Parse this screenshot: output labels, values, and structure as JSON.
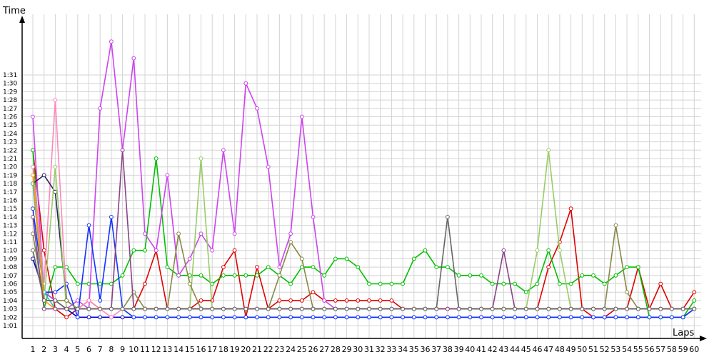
{
  "chart_data": {
    "type": "line",
    "title": "",
    "ylabel": "Time",
    "xlabel": "Laps",
    "x_ticks": [
      "1",
      "2",
      "3",
      "4",
      "5",
      "6",
      "7",
      "8",
      "9",
      "10",
      "11",
      "12",
      "13",
      "14",
      "15",
      "16",
      "17",
      "18",
      "19",
      "20",
      "21",
      "22",
      "23",
      "24",
      "25",
      "26",
      "27",
      "28",
      "29",
      "30",
      "31",
      "32",
      "33",
      "34",
      "35",
      "36",
      "37",
      "38",
      "39",
      "40",
      "41",
      "42",
      "43",
      "44",
      "45",
      "46",
      "47",
      "48",
      "49",
      "50",
      "51",
      "52",
      "53",
      "54",
      "55",
      "56",
      "57",
      "58",
      "59",
      "60"
    ],
    "y_ticks": [
      "1:01",
      "1:02",
      "1:03",
      "1:04",
      "1:05",
      "1:06",
      "1:07",
      "1:08",
      "1:09",
      "1:10",
      "1:11",
      "1:12",
      "1:13",
      "1:14",
      "1:15",
      "1:16",
      "1:17",
      "1:18",
      "1:19",
      "1:20",
      "1:21",
      "1:22",
      "1:23",
      "1:24",
      "1:25",
      "1:26",
      "1:27",
      "1:28",
      "1:29",
      "1:30",
      "1:31"
    ],
    "y_unit": "seconds",
    "ylim": [
      60,
      93
    ],
    "xlim": [
      1,
      60
    ],
    "grid": true,
    "legend": "none",
    "series": [
      {
        "color": "#e00000",
        "values": [
          82,
          70,
          63,
          62,
          63,
          64,
          63,
          63,
          63,
          63,
          66,
          70,
          63,
          63,
          63,
          64,
          64,
          68,
          70,
          62,
          68,
          63,
          64,
          64,
          64,
          65,
          64,
          64,
          64,
          64,
          64,
          64,
          64,
          63,
          63,
          63,
          63,
          63,
          63,
          63,
          63,
          63,
          63,
          63,
          63,
          63,
          68,
          71,
          75,
          63,
          62,
          62,
          63,
          63,
          68,
          63,
          66,
          63,
          63,
          65
        ]
      },
      {
        "color": "#0000cc",
        "values": [
          69,
          65,
          64,
          63,
          62,
          62,
          62,
          62,
          62,
          62,
          62,
          62,
          62,
          62,
          62,
          62,
          62,
          62,
          62,
          62,
          62,
          62,
          62,
          62,
          62,
          62,
          62,
          62,
          62,
          62,
          62,
          62,
          62,
          62,
          62,
          62,
          62,
          62,
          62,
          62,
          62,
          62,
          62,
          62,
          62,
          62,
          62,
          62,
          62,
          62,
          62,
          62,
          62,
          62,
          62,
          62,
          62,
          62,
          62,
          63
        ]
      },
      {
        "color": "#00c000",
        "values": [
          82,
          63,
          68,
          68,
          66,
          66,
          66,
          66,
          67,
          70,
          70,
          81,
          68,
          67,
          67,
          67,
          66,
          67,
          67,
          67,
          67,
          68,
          67,
          66,
          68,
          68,
          67,
          69,
          69,
          68,
          66,
          66,
          66,
          66,
          69,
          70,
          68,
          68,
          67,
          67,
          67,
          66,
          66,
          66,
          65,
          66,
          70,
          66,
          66,
          67,
          67,
          66,
          67,
          68,
          68,
          62,
          62,
          62,
          62,
          64
        ]
      },
      {
        "color": "#cc44ee",
        "values": [
          86,
          65,
          64,
          63,
          64,
          63,
          87,
          95,
          82,
          93,
          72,
          70,
          79,
          67,
          69,
          72,
          70,
          82,
          72,
          90,
          87,
          80,
          68,
          72,
          86,
          74,
          64,
          63,
          63,
          63,
          63,
          63,
          63,
          63,
          63,
          63,
          63,
          63,
          63,
          63,
          63,
          63,
          63,
          63,
          63,
          63,
          63,
          63,
          63,
          63,
          63,
          63,
          63,
          63,
          63,
          63,
          63,
          63,
          63,
          63
        ]
      },
      {
        "color": "#1133ff",
        "values": [
          75,
          65,
          65,
          66,
          62,
          73,
          64,
          74,
          63,
          62,
          62,
          62,
          62,
          62,
          62,
          62,
          62,
          62,
          62,
          62,
          62,
          62,
          62,
          62,
          62,
          62,
          62,
          62,
          62,
          62,
          62,
          62,
          62,
          62,
          62,
          62,
          62,
          62,
          62,
          62,
          62,
          62,
          62,
          62,
          62,
          62,
          62,
          62,
          62,
          62,
          62,
          62,
          62,
          62,
          62,
          62,
          62,
          62,
          62,
          63
        ]
      },
      {
        "color": "#ff88bb",
        "values": [
          80,
          66,
          88,
          64,
          63,
          64,
          63,
          62,
          63,
          63,
          63,
          63,
          63,
          63,
          63,
          63,
          63,
          63,
          63,
          63,
          63,
          63,
          63,
          63,
          63,
          63,
          63,
          63,
          63,
          63,
          63,
          63,
          63,
          63,
          63,
          63,
          63,
          63,
          63,
          63,
          63,
          63,
          63,
          63,
          63,
          63,
          63,
          63,
          63,
          63,
          63,
          63,
          63,
          63,
          63,
          63,
          63,
          63,
          63,
          63
        ]
      },
      {
        "color": "#222266",
        "values": [
          78,
          79,
          77,
          64,
          63,
          63,
          63,
          63,
          63,
          63,
          63,
          63,
          63,
          63,
          63,
          63,
          63,
          63,
          63,
          63,
          63,
          63,
          63,
          63,
          63,
          63,
          63,
          63,
          63,
          63,
          63,
          63,
          63,
          63,
          63,
          63,
          63,
          63,
          63,
          63,
          63,
          63,
          63,
          63,
          63,
          63,
          63,
          63,
          63,
          63,
          63,
          63,
          63,
          63,
          63,
          63,
          63,
          63,
          63,
          63
        ]
      },
      {
        "color": "#99cc66",
        "values": [
          78,
          64,
          80,
          63,
          63,
          63,
          63,
          63,
          63,
          63,
          63,
          63,
          63,
          63,
          63,
          81,
          63,
          63,
          63,
          63,
          63,
          63,
          63,
          63,
          63,
          63,
          63,
          63,
          63,
          63,
          63,
          63,
          63,
          63,
          63,
          63,
          63,
          63,
          63,
          63,
          63,
          63,
          63,
          63,
          63,
          70,
          82,
          70,
          63,
          63,
          63,
          63,
          63,
          63,
          63,
          63,
          63,
          63,
          63,
          63
        ]
      },
      {
        "color": "#888844",
        "values": [
          72,
          64,
          64,
          64,
          63,
          63,
          63,
          63,
          63,
          65,
          63,
          63,
          63,
          72,
          66,
          63,
          63,
          63,
          63,
          63,
          63,
          63,
          67,
          71,
          69,
          63,
          63,
          63,
          63,
          63,
          63,
          63,
          63,
          63,
          63,
          63,
          63,
          63,
          63,
          63,
          63,
          63,
          63,
          63,
          63,
          63,
          63,
          63,
          63,
          63,
          63,
          63,
          73,
          65,
          63,
          63,
          63,
          63,
          63,
          63
        ]
      },
      {
        "color": "#22bbcc",
        "values": [
          78,
          65,
          63,
          63,
          63,
          63,
          63,
          63,
          63,
          63,
          63,
          63,
          63,
          63,
          63,
          63,
          63,
          63,
          63,
          63,
          63,
          63,
          63,
          63,
          63,
          63,
          63,
          63,
          63,
          63,
          63,
          63,
          63,
          63,
          63,
          63,
          63,
          63,
          63,
          63,
          63,
          63,
          63,
          63,
          63,
          63,
          63,
          63,
          63,
          63,
          63,
          63,
          63,
          63,
          63,
          63,
          63,
          63,
          63,
          63
        ]
      },
      {
        "color": "#ff9900",
        "values": [
          79,
          64,
          63,
          63,
          63,
          63,
          63,
          63,
          63,
          63,
          63,
          63,
          63,
          63,
          63,
          63,
          63,
          63,
          63,
          63,
          63,
          63,
          63,
          63,
          63,
          63,
          63,
          63,
          63,
          63,
          63,
          63,
          63,
          63,
          63,
          63,
          63,
          63,
          63,
          63,
          63,
          63,
          63,
          63,
          63,
          63,
          63,
          63,
          63,
          63,
          63,
          63,
          63,
          63,
          63,
          63,
          63,
          63,
          63,
          63
        ]
      },
      {
        "color": "#884488",
        "values": [
          74,
          63,
          63,
          63,
          63,
          63,
          63,
          63,
          82,
          63,
          63,
          63,
          63,
          63,
          63,
          63,
          63,
          63,
          63,
          63,
          63,
          63,
          63,
          63,
          63,
          63,
          63,
          63,
          63,
          63,
          63,
          63,
          63,
          63,
          63,
          63,
          63,
          63,
          63,
          63,
          63,
          63,
          70,
          63,
          63,
          63,
          63,
          63,
          63,
          63,
          63,
          63,
          63,
          63,
          63,
          63,
          63,
          63,
          63,
          63
        ]
      },
      {
        "color": "#666666",
        "values": [
          70,
          64,
          64,
          63,
          63,
          63,
          63,
          63,
          63,
          63,
          63,
          63,
          63,
          63,
          63,
          63,
          63,
          63,
          63,
          63,
          63,
          63,
          63,
          63,
          63,
          63,
          63,
          63,
          63,
          63,
          63,
          63,
          63,
          63,
          63,
          63,
          63,
          74,
          63,
          63,
          63,
          63,
          63,
          63,
          63,
          63,
          63,
          63,
          63,
          63,
          63,
          63,
          63,
          63,
          63,
          63,
          63,
          63,
          63,
          63
        ]
      }
    ]
  }
}
